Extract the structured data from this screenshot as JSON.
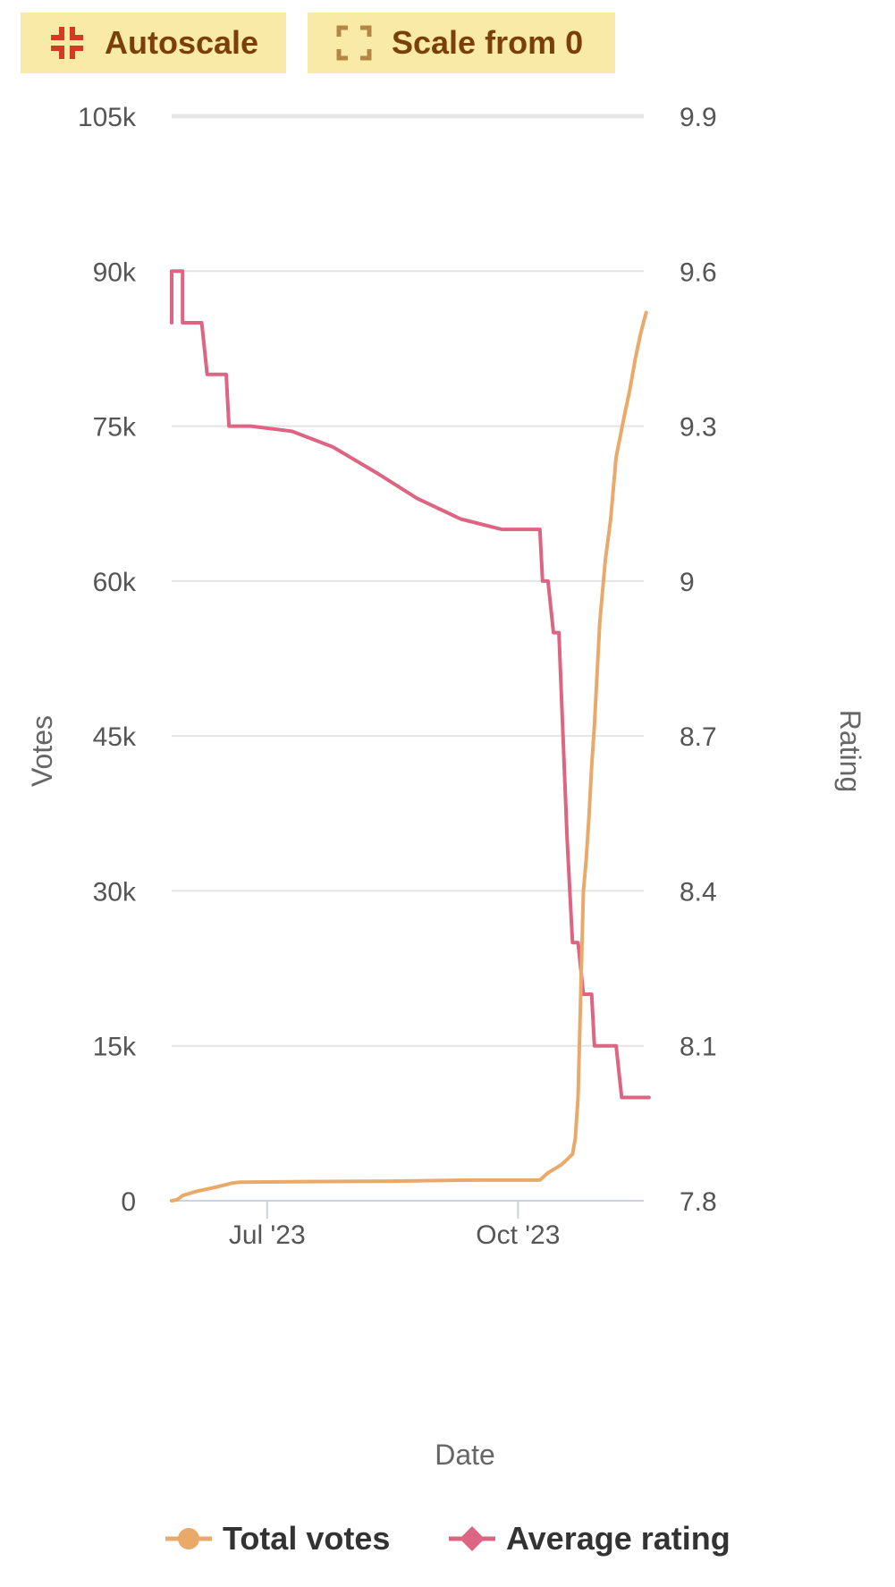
{
  "toolbar": {
    "autoscale_label": "Autoscale",
    "autoscale_icon": "compress-icon",
    "scale_from_zero_label": "Scale from 0",
    "scale_from_zero_icon": "expand-icon"
  },
  "colors": {
    "votes": "#e9a969",
    "rating": "#dd6482",
    "button_bg": "#faeaa8",
    "button_text": "#7a3f0a",
    "autoscale_icon": "#d43a22",
    "scale0_icon": "#b58545"
  },
  "chart_data": {
    "type": "line",
    "title": "",
    "xlabel": "Date",
    "y_left_label": "Votes",
    "y_right_label": "Rating",
    "x_ticks": [
      {
        "label": "Jul '23",
        "date": "2023-07-01"
      },
      {
        "label": "Oct '23",
        "date": "2023-10-01"
      }
    ],
    "y_left_ticks": [
      "0",
      "15k",
      "30k",
      "45k",
      "60k",
      "75k",
      "90k",
      "105k"
    ],
    "y_left_range": [
      0,
      105000
    ],
    "y_right_ticks": [
      "7.8",
      "8.1",
      "8.4",
      "8.7",
      "9",
      "9.3",
      "9.6",
      "9.9"
    ],
    "y_right_range": [
      7.8,
      9.9
    ],
    "grid": true,
    "legend_position": "bottom",
    "series": [
      {
        "name": "Total votes",
        "axis": "left",
        "points": [
          [
            "2023-05-27",
            0
          ],
          [
            "2023-05-29",
            100
          ],
          [
            "2023-05-31",
            500
          ],
          [
            "2023-06-05",
            900
          ],
          [
            "2023-06-12",
            1300
          ],
          [
            "2023-06-18",
            1700
          ],
          [
            "2023-06-21",
            1800
          ],
          [
            "2023-07-15",
            1850
          ],
          [
            "2023-08-15",
            1900
          ],
          [
            "2023-09-15",
            2000
          ],
          [
            "2023-10-09",
            2000
          ],
          [
            "2023-10-12",
            2700
          ],
          [
            "2023-10-17",
            3500
          ],
          [
            "2023-10-21",
            4500
          ],
          [
            "2023-10-22",
            6000
          ],
          [
            "2023-10-23",
            10000
          ],
          [
            "2023-10-24",
            20000
          ],
          [
            "2023-10-25",
            30000
          ],
          [
            "2023-10-26",
            33000
          ],
          [
            "2023-10-27",
            37000
          ],
          [
            "2023-10-28",
            42000
          ],
          [
            "2023-10-29",
            46000
          ],
          [
            "2023-10-31",
            56000
          ],
          [
            "2023-11-02",
            62000
          ],
          [
            "2023-11-04",
            66000
          ],
          [
            "2023-11-06",
            72000
          ],
          [
            "2023-11-09",
            76000
          ],
          [
            "2023-11-11",
            78500
          ],
          [
            "2023-11-13",
            81500
          ],
          [
            "2023-11-15",
            84000
          ],
          [
            "2023-11-17",
            86000
          ]
        ]
      },
      {
        "name": "Average rating",
        "axis": "right",
        "points": [
          [
            "2023-05-27",
            9.5
          ],
          [
            "2023-05-27",
            9.6
          ],
          [
            "2023-05-31",
            9.6
          ],
          [
            "2023-05-31",
            9.5
          ],
          [
            "2023-06-07",
            9.5
          ],
          [
            "2023-06-09",
            9.4
          ],
          [
            "2023-06-16",
            9.4
          ],
          [
            "2023-06-17",
            9.3
          ],
          [
            "2023-06-25",
            9.3
          ],
          [
            "2023-07-10",
            9.29
          ],
          [
            "2023-07-25",
            9.26
          ],
          [
            "2023-08-10",
            9.21
          ],
          [
            "2023-08-25",
            9.16
          ],
          [
            "2023-09-10",
            9.12
          ],
          [
            "2023-09-25",
            9.1
          ],
          [
            "2023-10-09",
            9.1
          ],
          [
            "2023-10-10",
            9.0
          ],
          [
            "2023-10-12",
            9.0
          ],
          [
            "2023-10-14",
            8.9
          ],
          [
            "2023-10-16",
            8.9
          ],
          [
            "2023-10-19",
            8.5
          ],
          [
            "2023-10-21",
            8.3
          ],
          [
            "2023-10-23",
            8.3
          ],
          [
            "2023-10-25",
            8.2
          ],
          [
            "2023-10-28",
            8.2
          ],
          [
            "2023-10-29",
            8.1
          ],
          [
            "2023-11-06",
            8.1
          ],
          [
            "2023-11-08",
            8.0
          ],
          [
            "2023-11-18",
            8.0
          ]
        ]
      }
    ]
  }
}
